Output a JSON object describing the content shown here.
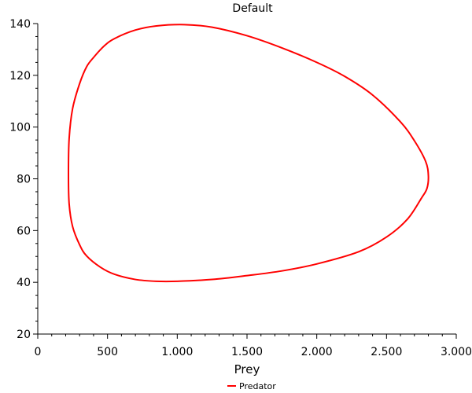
{
  "chart_data": {
    "type": "line",
    "title": "Default",
    "xlabel": "Prey",
    "ylabel": "",
    "xlim": [
      0,
      3000
    ],
    "ylim": [
      20,
      140
    ],
    "x_ticks": [
      {
        "value": 0,
        "label": "0"
      },
      {
        "value": 500,
        "label": "500"
      },
      {
        "value": 1000,
        "label": "1.000"
      },
      {
        "value": 1500,
        "label": "1.500"
      },
      {
        "value": 2000,
        "label": "2.000"
      },
      {
        "value": 2500,
        "label": "2.500"
      },
      {
        "value": 3000,
        "label": "3.000"
      }
    ],
    "y_ticks": [
      {
        "value": 20,
        "label": "20"
      },
      {
        "value": 40,
        "label": "40"
      },
      {
        "value": 60,
        "label": "60"
      },
      {
        "value": 80,
        "label": "80"
      },
      {
        "value": 100,
        "label": "100"
      },
      {
        "value": 120,
        "label": "120"
      },
      {
        "value": 140,
        "label": "140"
      }
    ],
    "grid": false,
    "legend_position": "bottom-center",
    "series": [
      {
        "name": "Predator",
        "color": "#ff0000",
        "x": [
          1050,
          1250,
          1500,
          1750,
          2000,
          2200,
          2400,
          2600,
          2700,
          2780,
          2800,
          2790,
          2750,
          2650,
          2500,
          2300,
          2000,
          1750,
          1500,
          1250,
          1000,
          850,
          700,
          550,
          450,
          350,
          300,
          250,
          225,
          220,
          225,
          250,
          300,
          350,
          400,
          475,
          550,
          700,
          850,
          1050
        ],
        "y": [
          139.6,
          138.6,
          135.3,
          130.6,
          125,
          119.6,
          112.4,
          102,
          94.7,
          86.8,
          81.3,
          76.3,
          72.5,
          64.4,
          57.5,
          51.8,
          47.1,
          44.4,
          42.6,
          41.1,
          40.4,
          40.4,
          41.1,
          43.1,
          45.8,
          50.2,
          54.5,
          61.5,
          70.3,
          82,
          95.6,
          107.2,
          116.8,
          123.3,
          126.9,
          131.3,
          134.2,
          137.5,
          139.1,
          139.6
        ]
      }
    ]
  }
}
